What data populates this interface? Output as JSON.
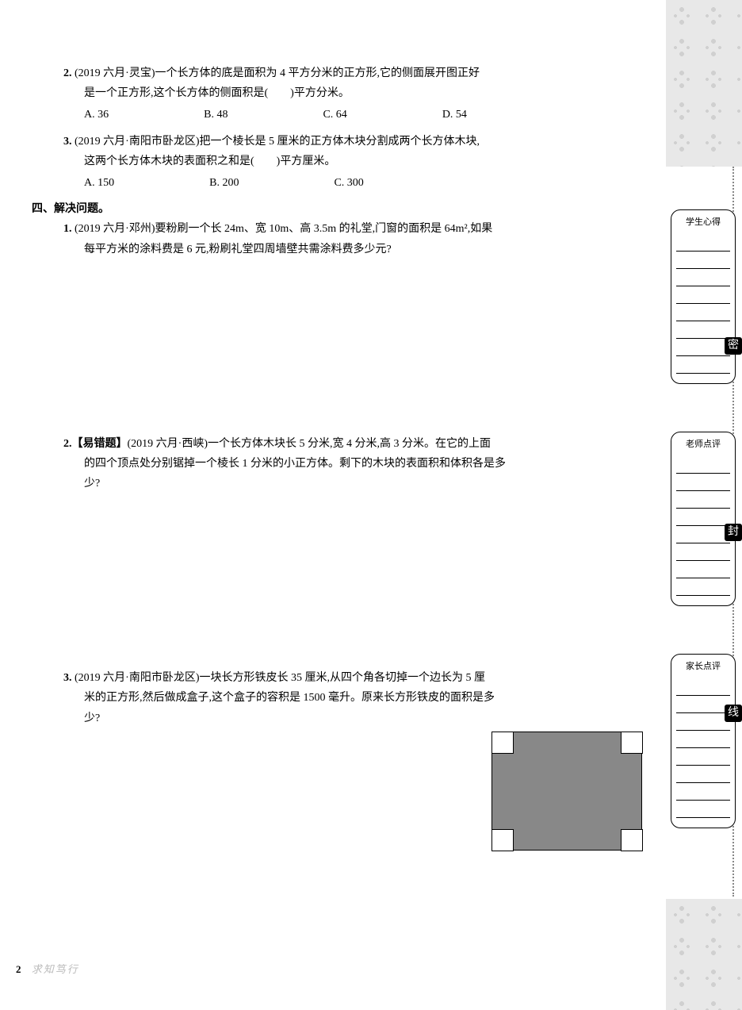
{
  "q2": {
    "num": "2. ",
    "source": "(2019 六月·灵宝)",
    "text1": "一个长方体的底是面积为 4 平方分米的正方形,它的侧面展开图正好",
    "text2": "是一个正方形,这个长方体的侧面积是(　　)平方分米。",
    "optA": "A. 36",
    "optB": "B. 48",
    "optC": "C. 64",
    "optD": "D. 54"
  },
  "q3": {
    "num": "3. ",
    "source": "(2019 六月·南阳市卧龙区)",
    "text1": "把一个棱长是 5 厘米的正方体木块分割成两个长方体木块,",
    "text2": "这两个长方体木块的表面积之和是(　　)平方厘米。",
    "optA": "A. 150",
    "optB": "B. 200",
    "optC": "C. 300"
  },
  "section4": {
    "header": "四、解决问题。"
  },
  "p1": {
    "num": "1. ",
    "source": "(2019 六月·邓州)",
    "text1": "要粉刷一个长 24m、宽 10m、高 3.5m 的礼堂,门窗的面积是 64m²,如果",
    "text2": "每平方米的涂料费是 6 元,粉刷礼堂四周墙壁共需涂料费多少元?"
  },
  "p2": {
    "num": "2.",
    "tag": "【易错题】",
    "source": "(2019 六月·西峡)",
    "text1": "一个长方体木块长 5 分米,宽 4 分米,高 3 分米。在它的上面",
    "text2": "的四个顶点处分别锯掉一个棱长 1 分米的小正方体。剩下的木块的表面积和体积各是多",
    "text3": "少?"
  },
  "p3": {
    "num": "3. ",
    "source": "(2019 六月·南阳市卧龙区)",
    "text1": "一块长方形铁皮长 35 厘米,从四个角各切掉一个边长为 5 厘",
    "text2": "米的正方形,然后做成盒子,这个盒子的容积是 1500 毫升。原来长方形铁皮的面积是多",
    "text3": "少?"
  },
  "sidebar": {
    "box1_title": "学生心得",
    "box2_title": "老师点评",
    "box3_title": "家长点评",
    "seal1": "密",
    "seal2": "封",
    "seal3": "线"
  },
  "footer": {
    "page": "2",
    "text": "求知笃行"
  },
  "figure": {
    "fill_color": "#888888",
    "border_color": "#000000",
    "corner_fill": "#ffffff"
  }
}
